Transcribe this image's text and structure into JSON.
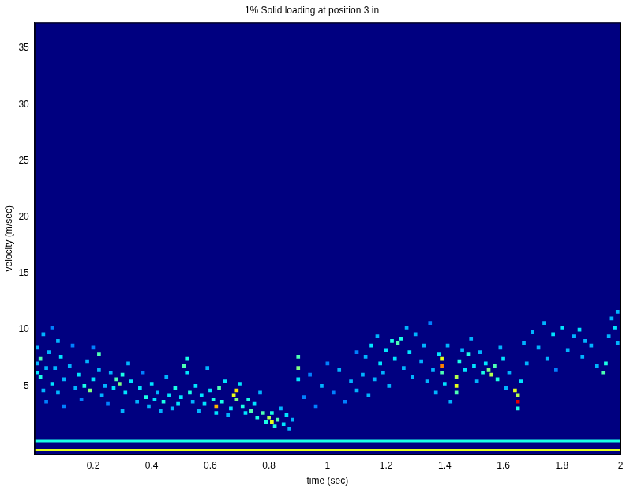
{
  "chart_data": {
    "type": "heatmap",
    "title": "1% Solid loading at position 3 in",
    "x_label": "time (sec)",
    "y_label": "velocity (m/sec)",
    "xlim": [
      0,
      2
    ],
    "xticks": [
      0.2,
      0.4,
      0.6,
      0.8,
      1,
      1.2,
      1.4,
      1.6,
      1.8,
      2
    ],
    "ylim": [
      -1.1,
      37.3
    ],
    "yticks": [
      5,
      10,
      15,
      20,
      25,
      30,
      35
    ],
    "grid": false,
    "zlim": [
      0,
      1
    ],
    "bands": [
      {
        "v": 0.1,
        "z": 0.4
      },
      {
        "v": -0.7,
        "z": 0.6
      }
    ],
    "cells": [
      [
        0.01,
        6.2,
        0.35
      ],
      [
        0.01,
        7.0,
        0.3
      ],
      [
        0.01,
        8.4,
        0.3
      ],
      [
        0.02,
        5.8,
        0.4
      ],
      [
        0.02,
        7.4,
        0.45
      ],
      [
        0.03,
        4.6,
        0.3
      ],
      [
        0.03,
        9.6,
        0.3
      ],
      [
        0.04,
        6.6,
        0.3
      ],
      [
        0.04,
        3.6,
        0.25
      ],
      [
        0.05,
        8.0,
        0.3
      ],
      [
        0.06,
        5.2,
        0.35
      ],
      [
        0.06,
        10.2,
        0.25
      ],
      [
        0.07,
        6.6,
        0.3
      ],
      [
        0.08,
        4.4,
        0.3
      ],
      [
        0.08,
        9.0,
        0.3
      ],
      [
        0.09,
        7.6,
        0.35
      ],
      [
        0.1,
        5.6,
        0.3
      ],
      [
        0.1,
        3.2,
        0.25
      ],
      [
        0.12,
        6.8,
        0.3
      ],
      [
        0.13,
        8.6,
        0.25
      ],
      [
        0.14,
        4.8,
        0.3
      ],
      [
        0.15,
        6.0,
        0.35
      ],
      [
        0.16,
        3.8,
        0.25
      ],
      [
        0.17,
        5.0,
        0.4
      ],
      [
        0.18,
        7.2,
        0.3
      ],
      [
        0.19,
        4.6,
        0.5
      ],
      [
        0.2,
        5.6,
        0.35
      ],
      [
        0.2,
        8.4,
        0.25
      ],
      [
        0.22,
        7.8,
        0.45
      ],
      [
        0.22,
        6.4,
        0.3
      ],
      [
        0.23,
        4.2,
        0.3
      ],
      [
        0.24,
        5.0,
        0.3
      ],
      [
        0.25,
        3.4,
        0.25
      ],
      [
        0.26,
        6.2,
        0.3
      ],
      [
        0.27,
        4.8,
        0.35
      ],
      [
        0.28,
        5.6,
        0.45
      ],
      [
        0.29,
        5.2,
        0.5
      ],
      [
        0.3,
        6.0,
        0.4
      ],
      [
        0.3,
        2.8,
        0.3
      ],
      [
        0.31,
        4.4,
        0.35
      ],
      [
        0.32,
        7.0,
        0.3
      ],
      [
        0.33,
        5.4,
        0.35
      ],
      [
        0.35,
        3.6,
        0.3
      ],
      [
        0.36,
        4.8,
        0.35
      ],
      [
        0.37,
        6.2,
        0.25
      ],
      [
        0.38,
        4.0,
        0.4
      ],
      [
        0.39,
        3.2,
        0.3
      ],
      [
        0.4,
        5.2,
        0.35
      ],
      [
        0.41,
        3.8,
        0.35
      ],
      [
        0.42,
        4.4,
        0.3
      ],
      [
        0.43,
        2.8,
        0.3
      ],
      [
        0.44,
        3.6,
        0.4
      ],
      [
        0.45,
        5.8,
        0.3
      ],
      [
        0.46,
        4.2,
        0.35
      ],
      [
        0.47,
        3.0,
        0.3
      ],
      [
        0.48,
        4.8,
        0.4
      ],
      [
        0.49,
        3.4,
        0.35
      ],
      [
        0.5,
        4.0,
        0.35
      ],
      [
        0.51,
        6.8,
        0.45
      ],
      [
        0.52,
        7.4,
        0.4
      ],
      [
        0.52,
        6.2,
        0.35
      ],
      [
        0.53,
        4.4,
        0.4
      ],
      [
        0.54,
        3.6,
        0.3
      ],
      [
        0.55,
        5.0,
        0.35
      ],
      [
        0.56,
        2.8,
        0.3
      ],
      [
        0.57,
        4.2,
        0.35
      ],
      [
        0.58,
        3.4,
        0.35
      ],
      [
        0.59,
        6.6,
        0.3
      ],
      [
        0.6,
        4.6,
        0.35
      ],
      [
        0.61,
        3.8,
        0.4
      ],
      [
        0.62,
        3.2,
        0.7
      ],
      [
        0.62,
        2.6,
        0.35
      ],
      [
        0.63,
        4.8,
        0.45
      ],
      [
        0.64,
        3.6,
        0.4
      ],
      [
        0.65,
        5.4,
        0.35
      ],
      [
        0.66,
        2.4,
        0.3
      ],
      [
        0.67,
        3.0,
        0.35
      ],
      [
        0.68,
        4.2,
        0.6
      ],
      [
        0.69,
        4.6,
        0.65
      ],
      [
        0.69,
        3.8,
        0.5
      ],
      [
        0.7,
        5.2,
        0.35
      ],
      [
        0.71,
        3.2,
        0.4
      ],
      [
        0.72,
        2.6,
        0.35
      ],
      [
        0.73,
        3.8,
        0.4
      ],
      [
        0.74,
        2.8,
        0.45
      ],
      [
        0.75,
        3.4,
        0.35
      ],
      [
        0.76,
        2.2,
        0.4
      ],
      [
        0.77,
        4.4,
        0.3
      ],
      [
        0.78,
        2.6,
        0.45
      ],
      [
        0.79,
        1.8,
        0.4
      ],
      [
        0.8,
        2.2,
        0.55
      ],
      [
        0.81,
        1.8,
        0.6
      ],
      [
        0.81,
        2.6,
        0.4
      ],
      [
        0.82,
        1.4,
        0.4
      ],
      [
        0.83,
        2.0,
        0.45
      ],
      [
        0.84,
        3.0,
        0.3
      ],
      [
        0.85,
        1.6,
        0.35
      ],
      [
        0.86,
        2.4,
        0.35
      ],
      [
        0.87,
        1.2,
        0.3
      ],
      [
        0.88,
        2.0,
        0.3
      ],
      [
        0.9,
        6.6,
        0.5
      ],
      [
        0.9,
        7.6,
        0.45
      ],
      [
        0.9,
        5.6,
        0.35
      ],
      [
        0.92,
        4.0,
        0.25
      ],
      [
        0.94,
        6.0,
        0.25
      ],
      [
        0.96,
        3.2,
        0.25
      ],
      [
        0.98,
        5.0,
        0.3
      ],
      [
        1.0,
        7.0,
        0.25
      ],
      [
        1.02,
        4.4,
        0.25
      ],
      [
        1.04,
        6.4,
        0.3
      ],
      [
        1.06,
        3.6,
        0.25
      ],
      [
        1.08,
        5.4,
        0.3
      ],
      [
        1.1,
        8.0,
        0.25
      ],
      [
        1.1,
        4.6,
        0.3
      ],
      [
        1.12,
        6.0,
        0.3
      ],
      [
        1.13,
        7.6,
        0.3
      ],
      [
        1.14,
        4.2,
        0.3
      ],
      [
        1.15,
        8.6,
        0.35
      ],
      [
        1.16,
        5.6,
        0.3
      ],
      [
        1.17,
        9.4,
        0.3
      ],
      [
        1.18,
        7.0,
        0.35
      ],
      [
        1.19,
        6.2,
        0.3
      ],
      [
        1.2,
        8.2,
        0.35
      ],
      [
        1.21,
        5.0,
        0.3
      ],
      [
        1.22,
        9.0,
        0.4
      ],
      [
        1.23,
        7.4,
        0.35
      ],
      [
        1.24,
        8.8,
        0.45
      ],
      [
        1.25,
        9.2,
        0.4
      ],
      [
        1.26,
        6.6,
        0.3
      ],
      [
        1.27,
        10.2,
        0.3
      ],
      [
        1.28,
        8.0,
        0.35
      ],
      [
        1.29,
        5.8,
        0.3
      ],
      [
        1.3,
        9.6,
        0.3
      ],
      [
        1.32,
        7.2,
        0.3
      ],
      [
        1.33,
        8.6,
        0.3
      ],
      [
        1.34,
        5.4,
        0.3
      ],
      [
        1.35,
        10.6,
        0.25
      ],
      [
        1.36,
        6.4,
        0.3
      ],
      [
        1.37,
        4.4,
        0.3
      ],
      [
        1.38,
        7.8,
        0.35
      ],
      [
        1.39,
        6.8,
        0.75
      ],
      [
        1.39,
        7.4,
        0.6
      ],
      [
        1.39,
        6.2,
        0.45
      ],
      [
        1.4,
        5.2,
        0.35
      ],
      [
        1.41,
        8.6,
        0.3
      ],
      [
        1.42,
        3.6,
        0.3
      ],
      [
        1.44,
        5.0,
        0.6
      ],
      [
        1.44,
        5.8,
        0.55
      ],
      [
        1.44,
        4.4,
        0.45
      ],
      [
        1.45,
        7.2,
        0.4
      ],
      [
        1.46,
        8.2,
        0.3
      ],
      [
        1.47,
        6.4,
        0.35
      ],
      [
        1.48,
        7.8,
        0.4
      ],
      [
        1.49,
        9.2,
        0.3
      ],
      [
        1.5,
        6.8,
        0.35
      ],
      [
        1.51,
        5.4,
        0.3
      ],
      [
        1.52,
        8.0,
        0.3
      ],
      [
        1.53,
        6.2,
        0.4
      ],
      [
        1.54,
        7.0,
        0.35
      ],
      [
        1.55,
        6.4,
        0.5
      ],
      [
        1.56,
        6.0,
        0.55
      ],
      [
        1.57,
        6.8,
        0.45
      ],
      [
        1.58,
        5.6,
        0.4
      ],
      [
        1.59,
        8.4,
        0.3
      ],
      [
        1.6,
        7.4,
        0.35
      ],
      [
        1.61,
        4.8,
        0.3
      ],
      [
        1.62,
        6.2,
        0.3
      ],
      [
        1.64,
        4.6,
        0.6
      ],
      [
        1.65,
        3.6,
        0.9
      ],
      [
        1.65,
        4.2,
        0.55
      ],
      [
        1.65,
        3.0,
        0.4
      ],
      [
        1.66,
        5.4,
        0.35
      ],
      [
        1.67,
        8.8,
        0.3
      ],
      [
        1.68,
        7.0,
        0.3
      ],
      [
        1.7,
        9.8,
        0.3
      ],
      [
        1.72,
        8.4,
        0.3
      ],
      [
        1.74,
        10.6,
        0.3
      ],
      [
        1.75,
        7.4,
        0.3
      ],
      [
        1.77,
        9.6,
        0.35
      ],
      [
        1.78,
        6.4,
        0.25
      ],
      [
        1.8,
        10.2,
        0.35
      ],
      [
        1.82,
        8.2,
        0.3
      ],
      [
        1.84,
        9.4,
        0.3
      ],
      [
        1.86,
        10.0,
        0.35
      ],
      [
        1.87,
        7.6,
        0.3
      ],
      [
        1.88,
        9.0,
        0.3
      ],
      [
        1.9,
        8.6,
        0.3
      ],
      [
        1.92,
        6.8,
        0.3
      ],
      [
        1.94,
        6.2,
        0.45
      ],
      [
        1.95,
        7.0,
        0.4
      ],
      [
        1.96,
        9.4,
        0.3
      ],
      [
        1.97,
        11.0,
        0.3
      ],
      [
        1.98,
        10.2,
        0.35
      ],
      [
        1.99,
        8.8,
        0.3
      ],
      [
        1.99,
        11.6,
        0.3
      ]
    ]
  }
}
